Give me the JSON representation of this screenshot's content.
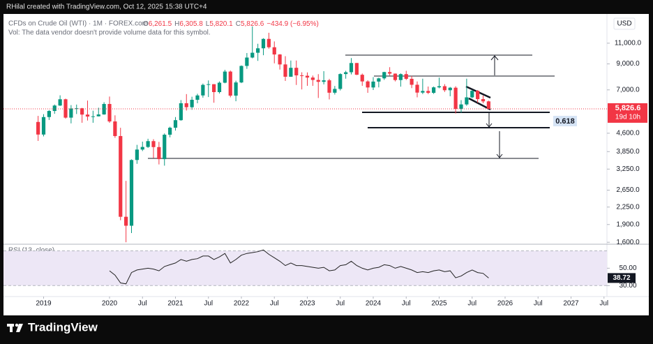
{
  "header": {
    "credit": "RHilal created with TradingView.com, Oct 12, 2025 15:38 UTC+4"
  },
  "footer": {
    "brand": "TradingView"
  },
  "chart_data": [
    {
      "type": "candlestick",
      "title": "CFDs on Crude Oil (WTI) · 1M · FOREX.com",
      "ohlc": [
        {
          "key": "O",
          "value": "6,261.5"
        },
        {
          "key": "H",
          "value": "6,305.8"
        },
        {
          "key": "L",
          "value": "5,820.1"
        },
        {
          "key": "C",
          "value": "5,826.6"
        }
      ],
      "change": "−434.9 (−6.95%)",
      "note": "Vol: The data vendor doesn't provide volume data for this symbol.",
      "currency": "USD",
      "last_label": "5,826.6",
      "countdown": "19d 10h",
      "fib_label": "0.618",
      "up_color": "#089981",
      "down_color": "#f23645",
      "log_scale": true,
      "x": [
        "2018-12",
        "2019-01",
        "2019-02",
        "2019-03",
        "2019-04",
        "2019-05",
        "2019-06",
        "2019-07",
        "2019-08",
        "2019-09",
        "2019-10",
        "2019-11",
        "2019-12",
        "2020-01",
        "2020-02",
        "2020-03",
        "2020-04",
        "2020-05",
        "2020-06",
        "2020-07",
        "2020-08",
        "2020-09",
        "2020-10",
        "2020-11",
        "2020-12",
        "2021-01",
        "2021-02",
        "2021-03",
        "2021-04",
        "2021-05",
        "2021-06",
        "2021-07",
        "2021-08",
        "2021-09",
        "2021-10",
        "2021-11",
        "2021-12",
        "2022-01",
        "2022-02",
        "2022-03",
        "2022-04",
        "2022-05",
        "2022-06",
        "2022-07",
        "2022-08",
        "2022-09",
        "2022-10",
        "2022-11",
        "2022-12",
        "2023-01",
        "2023-02",
        "2023-03",
        "2023-04",
        "2023-05",
        "2023-06",
        "2023-07",
        "2023-08",
        "2023-09",
        "2023-10",
        "2023-11",
        "2023-12",
        "2024-01",
        "2024-02",
        "2024-03",
        "2024-04",
        "2024-05",
        "2024-06",
        "2024-07",
        "2024-08",
        "2024-09",
        "2024-10",
        "2024-11",
        "2024-12",
        "2025-01",
        "2025-02",
        "2025-03",
        "2025-04",
        "2025-05",
        "2025-06",
        "2025-07",
        "2025-08",
        "2025-09",
        "2025-10"
      ],
      "open": [
        5130,
        4541,
        5379,
        5706,
        6014,
        6391,
        5349,
        5847,
        5858,
        5510,
        5407,
        5418,
        5517,
        6106,
        5156,
        4476,
        2048,
        1878,
        3549,
        3927,
        4027,
        4261,
        4022,
        3579,
        4534,
        4852,
        5220,
        6150,
        5916,
        6358,
        6632,
        7347,
        7395,
        6850,
        7503,
        8357,
        6618,
        7521,
        8826,
        9572,
        10028,
        10469,
        11467,
        10576,
        9862,
        8955,
        7949,
        8667,
        8055,
        8026,
        7887,
        7705,
        7567,
        7678,
        6809,
        7064,
        8158,
        8302,
        9079,
        8102,
        7596,
        7165,
        7585,
        7826,
        8317,
        8193,
        7699,
        8154,
        7791,
        7355,
        6817,
        6926,
        6800,
        7172,
        7253,
        6976,
        7148,
        5821,
        6079,
        6511,
        6937,
        6401,
        6261.5
      ],
      "high": [
        5440,
        5530,
        5755,
        6075,
        6640,
        6430,
        6040,
        6070,
        5880,
        6310,
        5720,
        5890,
        6210,
        6560,
        5470,
        4850,
        2900,
        3570,
        4110,
        4240,
        4360,
        4340,
        4230,
        4590,
        4900,
        5380,
        6340,
        6720,
        6550,
        6740,
        7440,
        7670,
        7400,
        7590,
        8500,
        8440,
        7650,
        8870,
        10000,
        12950,
        10940,
        11540,
        12170,
        11190,
        9900,
        9700,
        9300,
        9300,
        8300,
        8290,
        8040,
        8150,
        8390,
        7790,
        7270,
        8220,
        8420,
        9520,
        9085,
        8200,
        7680,
        7920,
        7880,
        8340,
        8720,
        8210,
        8210,
        8420,
        8010,
        7590,
        7800,
        7230,
        7230,
        7880,
        7400,
        7200,
        7250,
        6340,
        7800,
        7000,
        6990,
        6620,
        6305.8
      ],
      "low": [
        4270,
        4460,
        5230,
        5550,
        5990,
        5300,
        5060,
        5540,
        5090,
        5200,
        5090,
        5410,
        5500,
        5090,
        4400,
        1980,
        1600,
        1750,
        3420,
        3870,
        3990,
        3610,
        3400,
        3360,
        4420,
        4720,
        5190,
        5730,
        5770,
        6150,
        6490,
        6530,
        6180,
        6760,
        7460,
        6510,
        6270,
        7470,
        8580,
        9500,
        9270,
        9790,
        10430,
        9050,
        8520,
        7630,
        7940,
        7340,
        7030,
        7280,
        7280,
        6470,
        7380,
        6380,
        6690,
        6960,
        7800,
        8130,
        8080,
        7280,
        6800,
        6990,
        7170,
        7710,
        8050,
        7600,
        7220,
        7700,
        7120,
        6510,
        6720,
        6720,
        6730,
        7110,
        6860,
        6580,
        5570,
        5610,
        6000,
        6450,
        6180,
        6150,
        5820.1
      ],
      "close": [
        4541,
        5379,
        5706,
        6014,
        6391,
        5349,
        5847,
        5858,
        5510,
        5407,
        5418,
        5517,
        6106,
        5156,
        4476,
        2048,
        1878,
        3549,
        3927,
        4027,
        4261,
        4022,
        3579,
        4534,
        4852,
        5220,
        6150,
        5916,
        6358,
        6632,
        7347,
        7395,
        6850,
        7503,
        8357,
        6618,
        7521,
        8826,
        9572,
        10028,
        10469,
        11467,
        10576,
        9862,
        8955,
        7949,
        8667,
        8055,
        8026,
        7887,
        7705,
        7567,
        7678,
        6809,
        7064,
        8158,
        8302,
        9079,
        8102,
        7596,
        7165,
        7585,
        7826,
        8317,
        8193,
        7699,
        8154,
        7791,
        7355,
        6817,
        6926,
        6800,
        7172,
        7253,
        6976,
        7148,
        5821,
        6079,
        6511,
        6937,
        6401,
        6261.5,
        5826.6
      ],
      "ylim": [
        1570,
        14600
      ],
      "yticks": [
        {
          "value": 11000,
          "label": "11,000.0"
        },
        {
          "value": 9000,
          "label": "9,000.0"
        },
        {
          "value": 7000,
          "label": "7,000.0"
        },
        {
          "value": 4600,
          "label": "4,600.0"
        },
        {
          "value": 3850,
          "label": "3,850.0"
        },
        {
          "value": 3250,
          "label": "3,250.0"
        },
        {
          "value": 2650,
          "label": "2,650.0"
        },
        {
          "value": 2250,
          "label": "2,250.0"
        },
        {
          "value": 1900,
          "label": "1,900.0"
        },
        {
          "value": 1600,
          "label": "1,600.0"
        }
      ],
      "xticks": [
        {
          "value": "2019-01",
          "label": "2019"
        },
        {
          "value": "2020-01",
          "label": "2020"
        },
        {
          "value": "2020-07",
          "label": "Jul"
        },
        {
          "value": "2021-01",
          "label": "2021"
        },
        {
          "value": "2021-07",
          "label": "Jul"
        },
        {
          "value": "2022-01",
          "label": "2022"
        },
        {
          "value": "2022-07",
          "label": "Jul"
        },
        {
          "value": "2023-01",
          "label": "2023"
        },
        {
          "value": "2023-07",
          "label": "Jul"
        },
        {
          "value": "2024-01",
          "label": "2024"
        },
        {
          "value": "2024-07",
          "label": "Jul"
        },
        {
          "value": "2025-01",
          "label": "2025"
        },
        {
          "value": "2025-07",
          "label": "Jul"
        },
        {
          "value": "2026-01",
          "label": "2026"
        },
        {
          "value": "2026-07",
          "label": "Jul"
        },
        {
          "value": "2027-01",
          "label": "2027"
        },
        {
          "value": "2027-07",
          "label": "Jul"
        }
      ]
    },
    {
      "type": "line",
      "title": "RSI (13, close)",
      "color": "#222222",
      "band_color": "#ede7f6",
      "values": [
        null,
        null,
        null,
        null,
        null,
        null,
        null,
        null,
        null,
        null,
        null,
        null,
        null,
        47,
        42,
        33,
        32,
        45,
        48,
        49,
        50,
        49,
        47,
        52,
        54,
        56,
        60,
        58,
        60,
        61,
        64,
        64,
        60,
        63,
        67,
        56,
        60,
        65,
        67,
        68,
        69,
        71,
        66,
        62,
        58,
        53,
        56,
        53,
        53,
        52,
        51,
        50,
        51,
        47,
        48,
        53,
        54,
        58,
        53,
        50,
        48,
        50,
        51,
        54,
        53,
        50,
        52,
        50,
        48,
        45,
        46,
        45,
        47,
        48,
        46,
        47,
        39,
        41,
        45,
        48,
        45,
        44,
        38.72
      ],
      "ylim": [
        23,
        76
      ],
      "band": [
        30,
        70
      ],
      "yticks": [
        {
          "value": 50,
          "label": "50.00"
        },
        {
          "value": 30,
          "label": "30.00"
        }
      ]
    }
  ]
}
